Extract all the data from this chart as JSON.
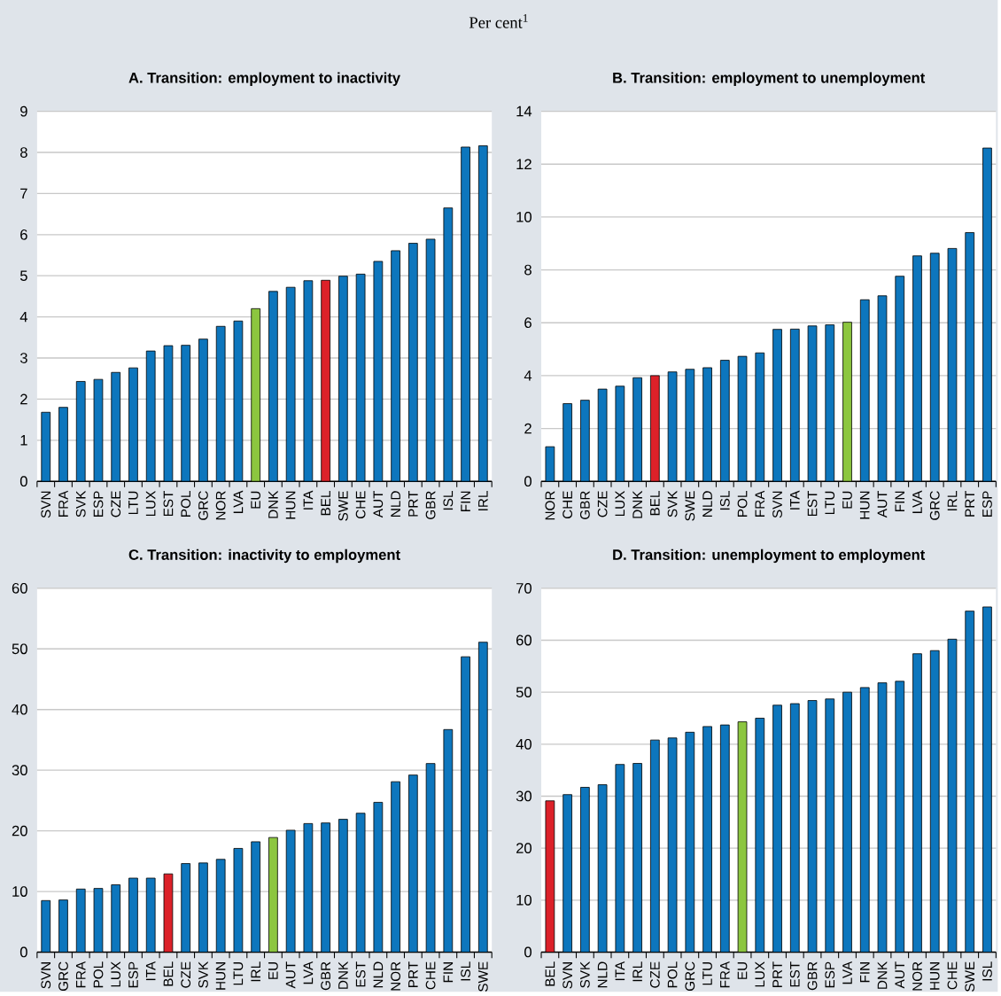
{
  "chart_data": [
    {
      "type": "bar",
      "subtitle": "Per cent$^{1}$",
      "title": "A. Transition: employment to inactivity",
      "categories": [
        "SVN",
        "FRA",
        "SVK",
        "ESP",
        "CZE",
        "LTU",
        "LUX",
        "EST",
        "POL",
        "GRC",
        "NOR",
        "LVA",
        "EU",
        "DNK",
        "HUN",
        "ITA",
        "BEL",
        "SWE",
        "CHE",
        "AUT",
        "NLD",
        "PRT",
        "GBR",
        "ISL",
        "FIN",
        "IRL"
      ],
      "values": [
        1.68,
        1.8,
        2.43,
        2.48,
        2.65,
        2.76,
        3.17,
        3.3,
        3.31,
        3.46,
        3.77,
        3.9,
        4.2,
        4.62,
        4.72,
        4.88,
        4.89,
        4.99,
        5.04,
        5.35,
        5.61,
        5.79,
        5.89,
        6.65,
        8.13,
        8.16
      ],
      "colors": [
        "#0d76bd",
        "#0d76bd",
        "#0d76bd",
        "#0d76bd",
        "#0d76bd",
        "#0d76bd",
        "#0d76bd",
        "#0d76bd",
        "#0d76bd",
        "#0d76bd",
        "#0d76bd",
        "#0d76bd",
        "#8cc63f",
        "#0d76bd",
        "#0d76bd",
        "#0d76bd",
        "#dc2129",
        "#0d76bd",
        "#0d76bd",
        "#0d76bd",
        "#0d76bd",
        "#0d76bd",
        "#0d76bd",
        "#0d76bd",
        "#0d76bd",
        "#0d76bd"
      ],
      "ylim": [
        0,
        9
      ],
      "yticks": [
        0,
        1,
        2,
        3,
        4,
        5,
        6,
        7,
        8,
        9
      ],
      "grid": "y"
    },
    {
      "type": "bar",
      "title": "B. Transition: employment to unemployment",
      "categories": [
        "NOR",
        "CHE",
        "GBR",
        "CZE",
        "LUX",
        "DNK",
        "BEL",
        "SVK",
        "SWE",
        "NLD",
        "ISL",
        "POL",
        "FRA",
        "SVN",
        "ITA",
        "EST",
        "LTU",
        "EU",
        "HUN",
        "AUT",
        "FIN",
        "LVA",
        "GRC",
        "IRL",
        "PRT",
        "ESP"
      ],
      "values": [
        1.31,
        2.94,
        3.07,
        3.49,
        3.6,
        3.92,
        4.0,
        4.14,
        4.24,
        4.3,
        4.58,
        4.73,
        4.86,
        5.75,
        5.76,
        5.88,
        5.92,
        6.02,
        6.87,
        7.02,
        7.76,
        8.53,
        8.63,
        8.81,
        9.41,
        12.61
      ],
      "colors": [
        "#0d76bd",
        "#0d76bd",
        "#0d76bd",
        "#0d76bd",
        "#0d76bd",
        "#0d76bd",
        "#dc2129",
        "#0d76bd",
        "#0d76bd",
        "#0d76bd",
        "#0d76bd",
        "#0d76bd",
        "#0d76bd",
        "#0d76bd",
        "#0d76bd",
        "#0d76bd",
        "#0d76bd",
        "#8cc63f",
        "#0d76bd",
        "#0d76bd",
        "#0d76bd",
        "#0d76bd",
        "#0d76bd",
        "#0d76bd",
        "#0d76bd",
        "#0d76bd"
      ],
      "ylim": [
        0,
        14
      ],
      "yticks": [
        0,
        2,
        4,
        6,
        8,
        10,
        12,
        14
      ],
      "grid": "y"
    },
    {
      "type": "bar",
      "title": "C. Transition: inactivity to employment",
      "categories": [
        "SVN",
        "GRC",
        "FRA",
        "POL",
        "LUX",
        "ESP",
        "ITA",
        "BEL",
        "CZE",
        "SVK",
        "HUN",
        "LTU",
        "IRL",
        "EU",
        "AUT",
        "LVA",
        "GBR",
        "DNK",
        "EST",
        "NLD",
        "NOR",
        "PRT",
        "CHE",
        "FIN",
        "ISL",
        "SWE"
      ],
      "values": [
        8.5,
        8.6,
        10.4,
        10.5,
        11.1,
        12.2,
        12.2,
        12.9,
        14.6,
        14.7,
        15.3,
        17.1,
        18.2,
        18.9,
        20.1,
        21.2,
        21.3,
        21.9,
        22.9,
        24.7,
        28.1,
        29.2,
        31.1,
        36.7,
        48.7,
        51.1
      ],
      "colors": [
        "#0d76bd",
        "#0d76bd",
        "#0d76bd",
        "#0d76bd",
        "#0d76bd",
        "#0d76bd",
        "#0d76bd",
        "#dc2129",
        "#0d76bd",
        "#0d76bd",
        "#0d76bd",
        "#0d76bd",
        "#0d76bd",
        "#8cc63f",
        "#0d76bd",
        "#0d76bd",
        "#0d76bd",
        "#0d76bd",
        "#0d76bd",
        "#0d76bd",
        "#0d76bd",
        "#0d76bd",
        "#0d76bd",
        "#0d76bd",
        "#0d76bd",
        "#0d76bd"
      ],
      "ylim": [
        0,
        60
      ],
      "yticks": [
        0,
        10,
        20,
        30,
        40,
        50,
        60
      ],
      "grid": "y"
    },
    {
      "type": "bar",
      "title": "D. Transition: unemployment to employment",
      "categories": [
        "BEL",
        "SVN",
        "SVK",
        "NLD",
        "ITA",
        "IRL",
        "CZE",
        "POL",
        "GRC",
        "LTU",
        "FRA",
        "EU",
        "LUX",
        "PRT",
        "EST",
        "GBR",
        "ESP",
        "LVA",
        "FIN",
        "DNK",
        "AUT",
        "NOR",
        "HUN",
        "CHE",
        "SWE",
        "ISL"
      ],
      "values": [
        29.1,
        30.3,
        31.7,
        32.2,
        36.1,
        36.3,
        40.8,
        41.2,
        42.3,
        43.4,
        43.7,
        44.3,
        45.0,
        47.5,
        47.8,
        48.4,
        48.7,
        50.0,
        50.9,
        51.8,
        52.1,
        57.4,
        58.0,
        60.2,
        65.6,
        66.4
      ],
      "colors": [
        "#dc2129",
        "#0d76bd",
        "#0d76bd",
        "#0d76bd",
        "#0d76bd",
        "#0d76bd",
        "#0d76bd",
        "#0d76bd",
        "#0d76bd",
        "#0d76bd",
        "#0d76bd",
        "#8cc63f",
        "#0d76bd",
        "#0d76bd",
        "#0d76bd",
        "#0d76bd",
        "#0d76bd",
        "#0d76bd",
        "#0d76bd",
        "#0d76bd",
        "#0d76bd",
        "#0d76bd",
        "#0d76bd",
        "#0d76bd",
        "#0d76bd",
        "#0d76bd"
      ],
      "ylim": [
        0,
        70
      ],
      "yticks": [
        0,
        10,
        20,
        30,
        40,
        50,
        60,
        70
      ],
      "grid": "y"
    }
  ]
}
